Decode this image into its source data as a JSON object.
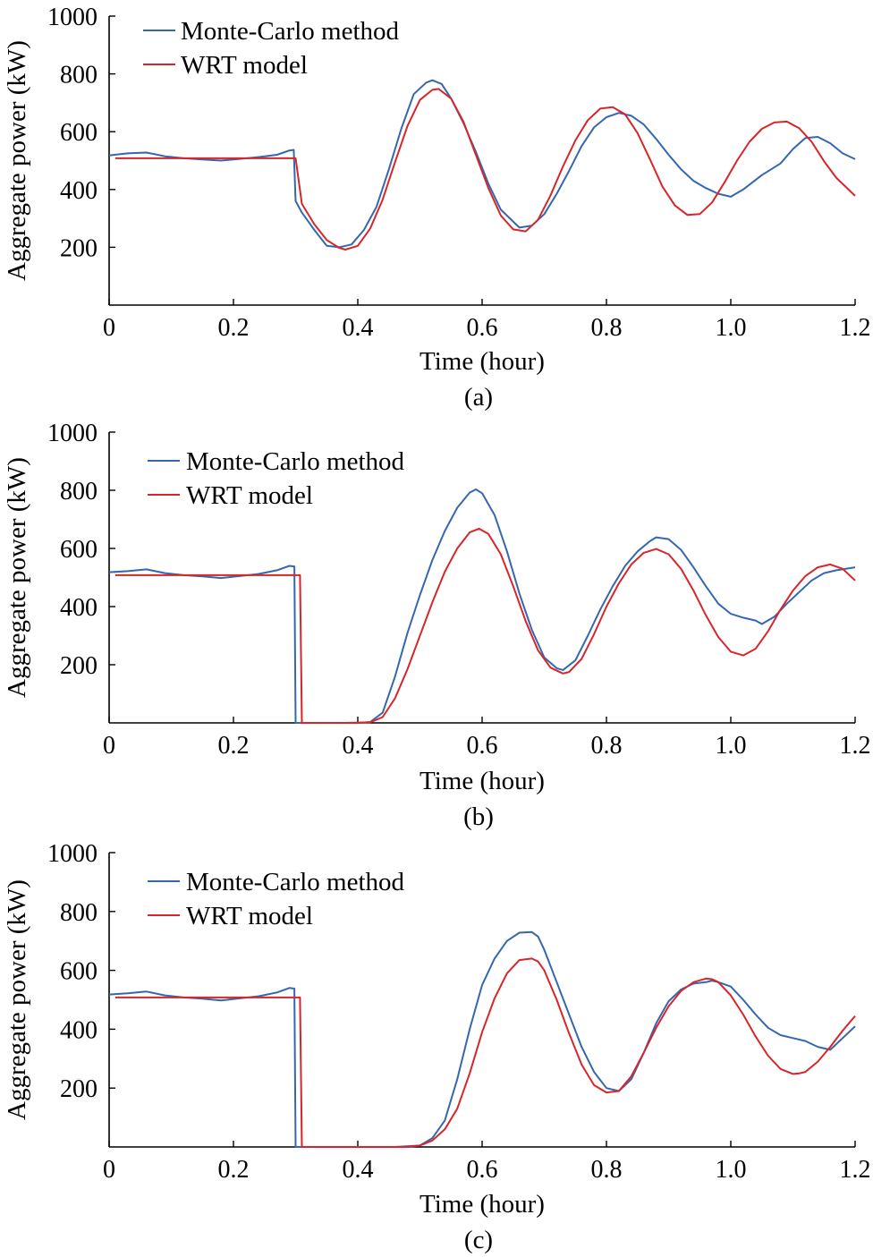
{
  "colors": {
    "monte_carlo": "#3567AE",
    "wrt": "#D7262B",
    "axis": "#000000"
  },
  "chart_data": [
    {
      "type": "line",
      "caption": "(a)",
      "xlabel": "Time (hour)",
      "ylabel": "Aggregate power (kW)",
      "xlim": [
        0,
        1.2
      ],
      "ylim": [
        0,
        1000
      ],
      "xticks": [
        "0",
        "0.2",
        "0.4",
        "0.6",
        "0.8",
        "1.0",
        "1.2"
      ],
      "yticks": [
        "200",
        "400",
        "600",
        "800",
        "1000"
      ],
      "legend_position": "top-left",
      "series": [
        {
          "name": "Monte-Carlo method",
          "color": "#3567AE",
          "x": [
            0,
            0.03,
            0.06,
            0.09,
            0.12,
            0.15,
            0.18,
            0.21,
            0.24,
            0.27,
            0.29,
            0.297,
            0.3,
            0.31,
            0.33,
            0.35,
            0.37,
            0.39,
            0.41,
            0.43,
            0.45,
            0.47,
            0.49,
            0.51,
            0.52,
            0.535,
            0.55,
            0.57,
            0.59,
            0.61,
            0.63,
            0.66,
            0.68,
            0.7,
            0.72,
            0.74,
            0.76,
            0.78,
            0.8,
            0.82,
            0.84,
            0.86,
            0.88,
            0.9,
            0.92,
            0.94,
            0.96,
            0.98,
            1.0,
            1.02,
            1.05,
            1.08,
            1.1,
            1.12,
            1.14,
            1.16,
            1.18,
            1.2
          ],
          "y": [
            518,
            525,
            528,
            515,
            508,
            504,
            500,
            506,
            512,
            520,
            535,
            537,
            360,
            320,
            260,
            205,
            200,
            210,
            260,
            340,
            470,
            610,
            730,
            770,
            778,
            765,
            715,
            630,
            530,
            420,
            330,
            268,
            275,
            315,
            385,
            465,
            550,
            615,
            650,
            665,
            655,
            625,
            575,
            520,
            470,
            430,
            405,
            385,
            375,
            400,
            450,
            490,
            540,
            578,
            582,
            560,
            525,
            505
          ]
        },
        {
          "name": "WRT model",
          "color": "#D7262B",
          "x": [
            0.01,
            0.05,
            0.1,
            0.15,
            0.2,
            0.25,
            0.3,
            0.31,
            0.33,
            0.35,
            0.37,
            0.38,
            0.4,
            0.42,
            0.44,
            0.46,
            0.48,
            0.5,
            0.52,
            0.53,
            0.55,
            0.57,
            0.59,
            0.61,
            0.63,
            0.65,
            0.67,
            0.69,
            0.71,
            0.73,
            0.75,
            0.77,
            0.79,
            0.81,
            0.83,
            0.85,
            0.87,
            0.89,
            0.91,
            0.93,
            0.95,
            0.97,
            0.99,
            1.01,
            1.03,
            1.05,
            1.07,
            1.09,
            1.11,
            1.13,
            1.15,
            1.17,
            1.2
          ],
          "y": [
            508,
            508,
            508,
            508,
            508,
            508,
            508,
            350,
            280,
            225,
            198,
            192,
            205,
            265,
            365,
            495,
            620,
            710,
            745,
            748,
            715,
            635,
            520,
            405,
            310,
            262,
            255,
            295,
            380,
            480,
            570,
            640,
            680,
            685,
            660,
            595,
            505,
            410,
            345,
            312,
            315,
            355,
            425,
            500,
            565,
            610,
            632,
            635,
            612,
            565,
            498,
            440,
            378
          ]
        }
      ]
    },
    {
      "type": "line",
      "caption": "(b)",
      "xlabel": "Time (hour)",
      "ylabel": "Aggregate power (kW)",
      "xlim": [
        0,
        1.2
      ],
      "ylim": [
        0,
        1000
      ],
      "xticks": [
        "0",
        "0.2",
        "0.4",
        "0.6",
        "0.8",
        "1.0",
        "1.2"
      ],
      "yticks": [
        "200",
        "400",
        "600",
        "800",
        "1000"
      ],
      "legend_position": "top-left",
      "series": [
        {
          "name": "Monte-Carlo method",
          "color": "#3567AE",
          "x": [
            0,
            0.03,
            0.06,
            0.09,
            0.12,
            0.15,
            0.18,
            0.21,
            0.24,
            0.27,
            0.29,
            0.298,
            0.3,
            0.32,
            0.36,
            0.4,
            0.42,
            0.44,
            0.46,
            0.48,
            0.5,
            0.52,
            0.54,
            0.56,
            0.58,
            0.59,
            0.6,
            0.62,
            0.64,
            0.66,
            0.68,
            0.7,
            0.72,
            0.73,
            0.75,
            0.77,
            0.79,
            0.81,
            0.83,
            0.85,
            0.87,
            0.88,
            0.9,
            0.92,
            0.94,
            0.96,
            0.98,
            1.0,
            1.02,
            1.04,
            1.05,
            1.07,
            1.09,
            1.11,
            1.13,
            1.15,
            1.17,
            1.2
          ],
          "y": [
            518,
            522,
            528,
            515,
            508,
            504,
            498,
            505,
            512,
            525,
            540,
            538,
            0,
            0,
            0,
            0,
            3,
            35,
            160,
            310,
            440,
            560,
            660,
            740,
            792,
            803,
            790,
            715,
            590,
            445,
            320,
            225,
            188,
            182,
            215,
            300,
            390,
            470,
            540,
            590,
            625,
            638,
            632,
            595,
            535,
            470,
            410,
            375,
            362,
            352,
            340,
            365,
            410,
            450,
            490,
            515,
            525,
            535
          ]
        },
        {
          "name": "WRT model",
          "color": "#D7262B",
          "x": [
            0.01,
            0.05,
            0.1,
            0.15,
            0.2,
            0.25,
            0.3,
            0.307,
            0.31,
            0.34,
            0.38,
            0.42,
            0.44,
            0.46,
            0.48,
            0.5,
            0.52,
            0.54,
            0.56,
            0.58,
            0.595,
            0.61,
            0.63,
            0.65,
            0.67,
            0.69,
            0.71,
            0.73,
            0.74,
            0.76,
            0.78,
            0.8,
            0.82,
            0.84,
            0.86,
            0.88,
            0.9,
            0.92,
            0.94,
            0.96,
            0.98,
            1.0,
            1.02,
            1.04,
            1.06,
            1.08,
            1.1,
            1.12,
            1.14,
            1.16,
            1.18,
            1.2
          ],
          "y": [
            508,
            508,
            508,
            508,
            508,
            508,
            508,
            508,
            0,
            0,
            0,
            2,
            20,
            85,
            185,
            300,
            415,
            520,
            600,
            655,
            668,
            650,
            580,
            470,
            350,
            250,
            190,
            170,
            175,
            220,
            305,
            400,
            480,
            545,
            585,
            598,
            580,
            530,
            455,
            370,
            295,
            245,
            232,
            255,
            315,
            390,
            455,
            505,
            535,
            545,
            530,
            490
          ]
        }
      ]
    },
    {
      "type": "line",
      "caption": "(c)",
      "xlabel": "Time (hour)",
      "ylabel": "Aggregate power (kW)",
      "xlim": [
        0,
        1.2
      ],
      "ylim": [
        0,
        1000
      ],
      "xticks": [
        "0",
        "0.2",
        "0.4",
        "0.6",
        "0.8",
        "1.0",
        "1.2"
      ],
      "yticks": [
        "200",
        "400",
        "600",
        "800",
        "1000"
      ],
      "legend_position": "top-left",
      "series": [
        {
          "name": "Monte-Carlo method",
          "color": "#3567AE",
          "x": [
            0,
            0.03,
            0.06,
            0.09,
            0.12,
            0.15,
            0.18,
            0.21,
            0.24,
            0.27,
            0.29,
            0.298,
            0.3,
            0.34,
            0.4,
            0.46,
            0.5,
            0.52,
            0.54,
            0.56,
            0.58,
            0.6,
            0.62,
            0.64,
            0.66,
            0.68,
            0.69,
            0.7,
            0.72,
            0.74,
            0.76,
            0.78,
            0.8,
            0.82,
            0.84,
            0.86,
            0.88,
            0.9,
            0.92,
            0.94,
            0.96,
            0.97,
            0.98,
            1.0,
            1.02,
            1.04,
            1.06,
            1.08,
            1.1,
            1.12,
            1.14,
            1.16,
            1.18,
            1.2
          ],
          "y": [
            518,
            522,
            528,
            515,
            508,
            504,
            498,
            505,
            512,
            525,
            540,
            538,
            0,
            0,
            0,
            0,
            5,
            30,
            90,
            230,
            400,
            550,
            640,
            700,
            728,
            730,
            715,
            670,
            560,
            450,
            340,
            255,
            200,
            190,
            230,
            320,
            420,
            495,
            535,
            555,
            560,
            565,
            560,
            545,
            500,
            450,
            405,
            380,
            370,
            360,
            340,
            330,
            370,
            410
          ]
        },
        {
          "name": "WRT model",
          "color": "#D7262B",
          "x": [
            0.01,
            0.05,
            0.1,
            0.15,
            0.2,
            0.25,
            0.3,
            0.307,
            0.31,
            0.36,
            0.42,
            0.48,
            0.5,
            0.52,
            0.54,
            0.56,
            0.58,
            0.6,
            0.62,
            0.64,
            0.66,
            0.68,
            0.69,
            0.7,
            0.72,
            0.74,
            0.76,
            0.78,
            0.8,
            0.82,
            0.84,
            0.86,
            0.88,
            0.9,
            0.92,
            0.94,
            0.96,
            0.97,
            0.98,
            1.0,
            1.02,
            1.04,
            1.06,
            1.08,
            1.1,
            1.11,
            1.12,
            1.14,
            1.16,
            1.18,
            1.2
          ],
          "y": [
            508,
            508,
            508,
            508,
            508,
            508,
            508,
            508,
            0,
            0,
            0,
            0,
            5,
            22,
            60,
            130,
            250,
            390,
            505,
            590,
            635,
            640,
            630,
            600,
            500,
            385,
            280,
            210,
            185,
            190,
            240,
            320,
            405,
            478,
            530,
            560,
            572,
            570,
            560,
            515,
            450,
            375,
            310,
            265,
            248,
            250,
            255,
            290,
            340,
            395,
            445
          ]
        }
      ]
    }
  ]
}
